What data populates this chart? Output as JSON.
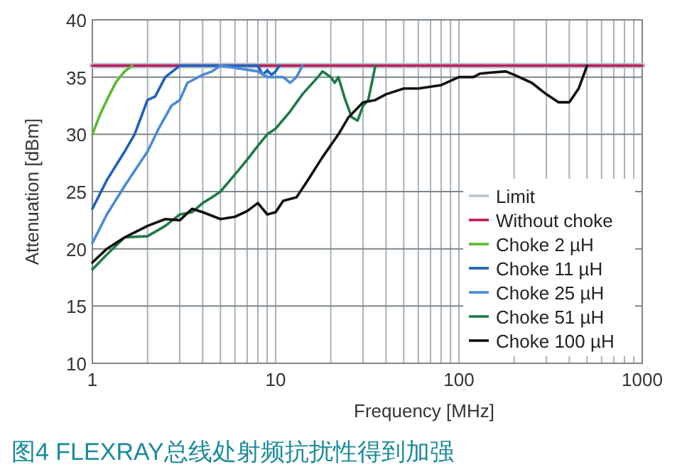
{
  "chart_data": {
    "type": "line",
    "title": "图4  FLEXRAY总线处射频抗扰性得到加强",
    "xlabel": "Frequency [MHz]",
    "ylabel": "Attenuation [dBm]",
    "log": "x",
    "grid": true,
    "legend": "bottom right",
    "xlim": [
      1,
      1000
    ],
    "ylim": [
      10,
      40
    ],
    "xticks": [
      1,
      {
        "value": 2,
        "label": null
      },
      {
        "value": 3,
        "label": null
      },
      {
        "value": 4,
        "label": null
      },
      {
        "value": 5,
        "label": null
      },
      {
        "value": 6,
        "label": null
      },
      {
        "value": 7,
        "label": null
      },
      {
        "value": 8,
        "label": null
      },
      {
        "value": 9,
        "label": null
      },
      10,
      {
        "value": 20,
        "label": null
      },
      {
        "value": 30,
        "label": null
      },
      {
        "value": 40,
        "label": null
      },
      {
        "value": 50,
        "label": null
      },
      {
        "value": 60,
        "label": null
      },
      {
        "value": 70,
        "label": null
      },
      {
        "value": 80,
        "label": null
      },
      {
        "value": 90,
        "label": null
      },
      100,
      {
        "value": 200,
        "label": null
      },
      {
        "value": 300,
        "label": null
      },
      {
        "value": 400,
        "label": null
      },
      {
        "value": 500,
        "label": null
      },
      {
        "value": 600,
        "label": null
      },
      {
        "value": 700,
        "label": null
      },
      {
        "value": 800,
        "label": null
      },
      {
        "value": 900,
        "label": null
      },
      1000
    ],
    "yticks": [
      10,
      15,
      20,
      25,
      30,
      35,
      40
    ],
    "series": [
      {
        "name": "Limit",
        "color": "#b7c4cc",
        "x": [
          1,
          1000
        ],
        "values": [
          36,
          36
        ]
      },
      {
        "name": "Without choke",
        "color": "#c0185a",
        "x": [
          1,
          1000
        ],
        "values": [
          36,
          36
        ]
      },
      {
        "name": "Choke 2 µH",
        "color": "#5ab82e",
        "x": [
          1,
          1.1,
          1.2,
          1.35,
          1.5,
          1.65
        ],
        "values": [
          30,
          31.7,
          33,
          34.6,
          35.5,
          36
        ]
      },
      {
        "name": "Choke 11 µH",
        "color": "#1f5fbf",
        "x": [
          1,
          1.2,
          1.5,
          1.7,
          2,
          2.2,
          2.5,
          3,
          8,
          8.5,
          9,
          9.5,
          10,
          10.5
        ],
        "values": [
          23.5,
          26,
          28.5,
          30,
          33,
          33.3,
          35,
          36,
          36,
          35.2,
          35.6,
          35.2,
          35.5,
          36
        ]
      },
      {
        "name": "Choke 25 µH",
        "color": "#4a8ad6",
        "x": [
          1,
          1.2,
          1.5,
          2,
          2.3,
          2.7,
          3,
          3.3,
          4,
          4.5,
          5,
          8,
          9,
          10,
          11,
          12,
          13,
          14
        ],
        "values": [
          20.5,
          23,
          25.5,
          28.5,
          30.5,
          32.5,
          33,
          34.5,
          35.2,
          35.5,
          36,
          35.5,
          35,
          35,
          35,
          34.5,
          35,
          36
        ]
      },
      {
        "name": "Choke 51 µH",
        "color": "#1e7a46",
        "x": [
          1,
          1.2,
          1.5,
          2,
          2.5,
          3,
          3.5,
          4,
          4.5,
          5,
          6,
          7,
          8,
          9,
          10,
          12,
          14,
          17,
          18,
          20,
          21,
          22,
          24,
          26,
          28,
          30,
          32,
          34,
          35
        ],
        "values": [
          18.2,
          19.5,
          21,
          21.1,
          22,
          23,
          23.2,
          24,
          24.5,
          25,
          26.5,
          27.8,
          29,
          30,
          30.5,
          32,
          33.5,
          35,
          35.5,
          35,
          34.5,
          35,
          33,
          31.5,
          31.2,
          32.5,
          33,
          35,
          36
        ]
      },
      {
        "name": "Choke 100 µH",
        "color": "#111111",
        "x": [
          1,
          1.2,
          1.5,
          2,
          2.5,
          3,
          3.5,
          4,
          5,
          6,
          7,
          8,
          9,
          10,
          11,
          13,
          15,
          18,
          22,
          25,
          30,
          35,
          40,
          50,
          60,
          80,
          100,
          120,
          130,
          150,
          180,
          200,
          250,
          300,
          350,
          400,
          450,
          500
        ],
        "values": [
          18.8,
          20,
          21,
          22,
          22.6,
          22.5,
          23.5,
          23.2,
          22.6,
          22.8,
          23.3,
          24,
          23,
          23.2,
          24.2,
          24.5,
          26,
          28,
          30,
          31.5,
          32.8,
          33,
          33.5,
          34,
          34,
          34.3,
          35,
          35,
          35.3,
          35.4,
          35.5,
          35.2,
          34.5,
          33.5,
          32.8,
          32.8,
          34,
          36
        ]
      }
    ]
  }
}
